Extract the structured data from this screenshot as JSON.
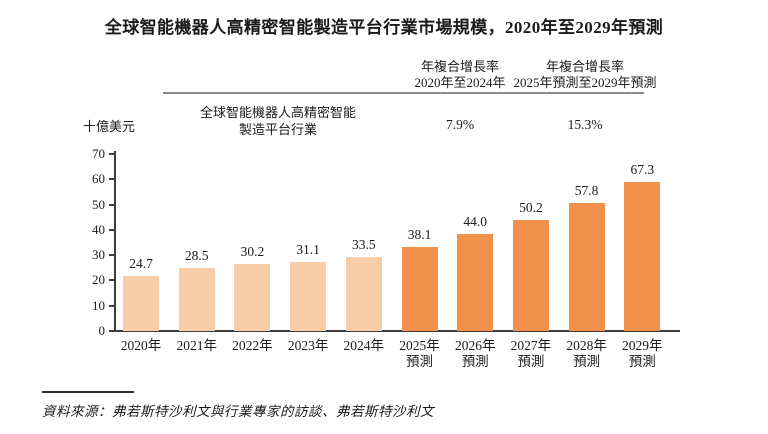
{
  "title": "全球智能機器人高精密智能製造平台行業市場規模，2020年至2029年預測",
  "header": {
    "series_line1": "全球智能機器人高精密智能",
    "series_line2": "製造平台行業",
    "cagr_col1": {
      "line1": "年複合增長率",
      "line2": "2020年至2024年",
      "value": "7.9%"
    },
    "cagr_col2": {
      "line1": "年複合增長率",
      "line2": "2025年預測至2029年預測",
      "value": "15.3%"
    }
  },
  "source": "資料來源：弗若斯特沙利文與行業專家的訪談、弗若斯特沙利文",
  "chart_data": {
    "type": "bar",
    "title": "全球智能機器人高精密智能製造平台行業市場規模，2020年至2029年預測",
    "series_name": "全球智能機器人高精密智能製造平台行業",
    "xlabel": "",
    "ylabel": "十億美元",
    "ylim": [
      0,
      70
    ],
    "y_ticks": [
      0,
      10,
      20,
      30,
      40,
      50,
      60,
      70
    ],
    "grid": false,
    "legend_position": "none",
    "categories": [
      "2020年",
      "2021年",
      "2022年",
      "2023年",
      "2024年",
      "2025年預測",
      "2026年預測",
      "2027年預測",
      "2028年預測",
      "2029年預測"
    ],
    "x_tick_label_lines": [
      [
        "2020年"
      ],
      [
        "2021年"
      ],
      [
        "2022年"
      ],
      [
        "2023年"
      ],
      [
        "2024年"
      ],
      [
        "2025年",
        "預測"
      ],
      [
        "2026年",
        "預測"
      ],
      [
        "2027年",
        "預測"
      ],
      [
        "2028年",
        "預測"
      ],
      [
        "2029年",
        "預測"
      ]
    ],
    "values": [
      24.7,
      28.5,
      30.2,
      31.1,
      33.5,
      38.1,
      44.0,
      50.2,
      57.8,
      67.3
    ],
    "value_labels": [
      "24.7",
      "28.5",
      "30.2",
      "31.1",
      "33.5",
      "38.1",
      "44.0",
      "50.2",
      "57.8",
      "67.3"
    ],
    "historical_count": 5,
    "colors": {
      "historical_bar": "#F8CDA9",
      "forecast_bar": "#F2914B",
      "axis": "#3D3D3D",
      "text": "#1B1B1B",
      "header_rule": "#8A8A8A"
    },
    "annotations": [
      {
        "label": "年複合增長率 2020年至2024年",
        "value": "7.9%"
      },
      {
        "label": "年複合增長率 2025年預測至2029年預測",
        "value": "15.3%"
      }
    ]
  }
}
